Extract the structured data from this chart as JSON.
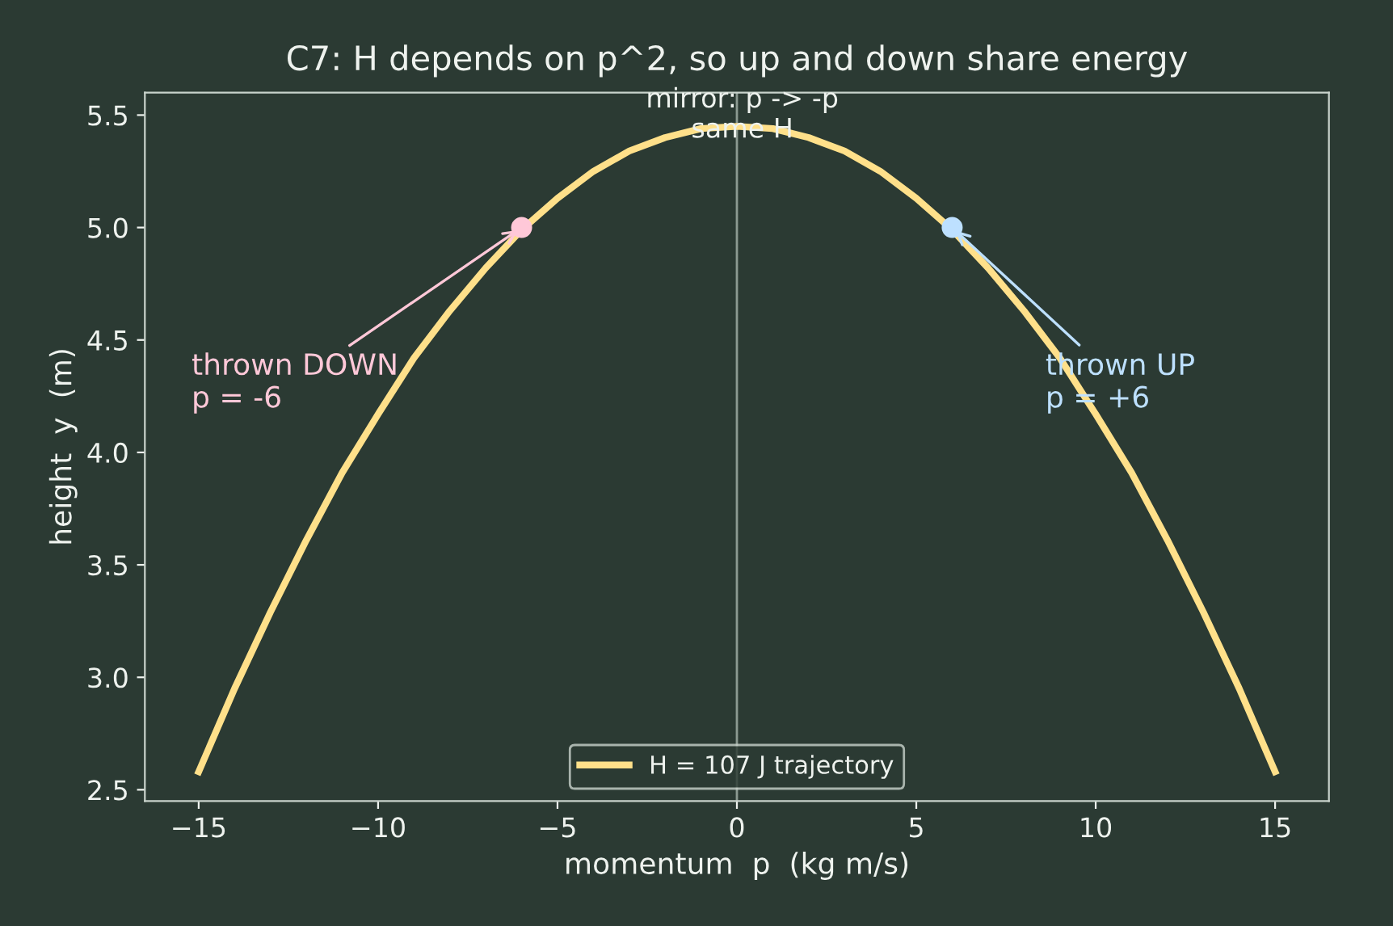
{
  "chart_data": {
    "type": "line",
    "title": "C7: H depends on p^2, so up and down share energy",
    "xlabel": "momentum  p  (kg m/s)",
    "ylabel": "height  y  (m)",
    "x": [
      -15,
      -14,
      -13,
      -12,
      -11,
      -10,
      -9,
      -8,
      -7,
      -6,
      -5,
      -4,
      -3,
      -2,
      -1,
      0,
      1,
      2,
      3,
      4,
      5,
      6,
      7,
      8,
      9,
      10,
      11,
      12,
      13,
      14,
      15
    ],
    "series": [
      {
        "name": "H = 107 J trajectory",
        "color": "#ffe08a",
        "values": [
          2.58,
          2.95,
          3.29,
          3.61,
          3.91,
          4.17,
          4.42,
          4.63,
          4.82,
          4.99,
          5.13,
          5.25,
          5.34,
          5.4,
          5.44,
          5.45,
          5.44,
          5.4,
          5.34,
          5.25,
          5.13,
          4.99,
          4.82,
          4.63,
          4.42,
          4.17,
          3.91,
          3.61,
          3.29,
          2.95,
          2.58
        ]
      },
      {
        "type": "scatter",
        "x": [
          -6,
          6
        ],
        "colors": [
          "#ffc8d8",
          "#bde0ff"
        ],
        "values": [
          5.0,
          5.0
        ]
      }
    ],
    "annotations": [
      {
        "text": "thrown DOWN\np = -6",
        "x": -6,
        "y": 5.0
      },
      {
        "text": "thrown UP\np = +6",
        "x": 6,
        "y": 5.0
      }
    ],
    "ref_lines": [
      {
        "axis": "x",
        "value": 0,
        "label": "mirror: p -> -p\nsame H",
        "color": "#8c9a92"
      }
    ],
    "xlim": [
      -16.5,
      16.5
    ],
    "ylim": [
      2.45,
      5.6
    ],
    "xticks": [
      {
        "value": -15,
        "label": "−15"
      },
      {
        "value": -10,
        "label": "−10"
      },
      {
        "value": -5,
        "label": "−5"
      },
      0,
      5,
      10,
      15
    ],
    "yticks": [
      2.5,
      {
        "value": 3,
        "label": "3.0"
      },
      3.5,
      {
        "value": 4,
        "label": "4.0"
      },
      4.5,
      {
        "value": 5,
        "label": "5.0"
      },
      5.5
    ],
    "grid": false,
    "legend": "bottom"
  }
}
